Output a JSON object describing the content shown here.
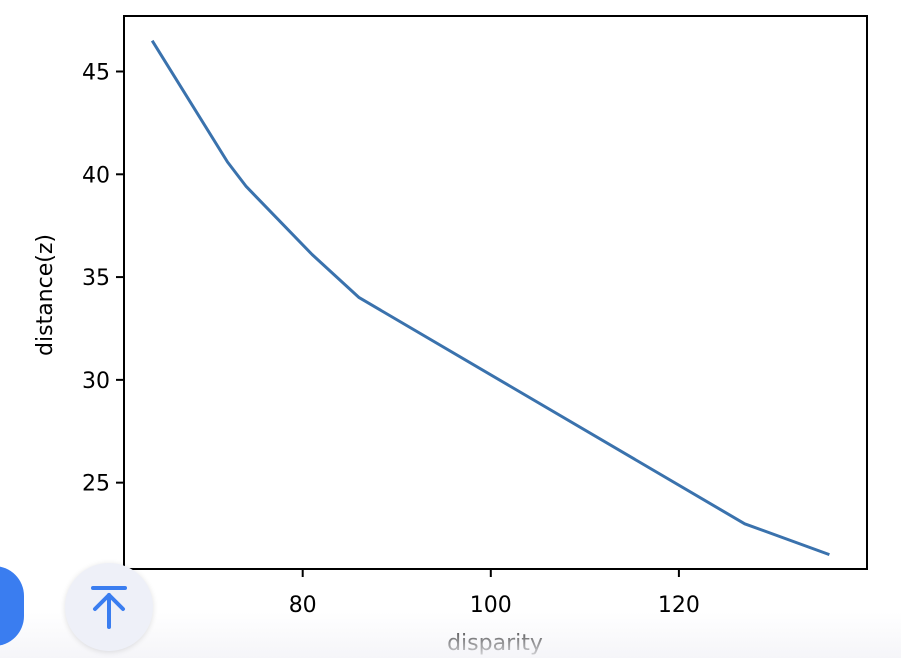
{
  "chart_data": {
    "type": "line",
    "title": "",
    "xlabel": "disparity",
    "ylabel": "distance(z)",
    "xlim": [
      61,
      140
    ],
    "ylim": [
      20.8,
      47.7
    ],
    "xticks": [
      80,
      100,
      120
    ],
    "yticks": [
      25,
      30,
      35,
      40,
      45
    ],
    "grid": false,
    "series": [
      {
        "color": "#3a72ad",
        "x": [
          64,
          72,
          74,
          81,
          86,
          127,
          136
        ],
        "y": [
          46.5,
          40.6,
          39.4,
          36.1,
          34.0,
          23.0,
          21.5
        ]
      }
    ]
  },
  "ui": {
    "scroll_top_icon": "arrow-up-to-line-icon",
    "accent_color": "#3a7df0"
  }
}
